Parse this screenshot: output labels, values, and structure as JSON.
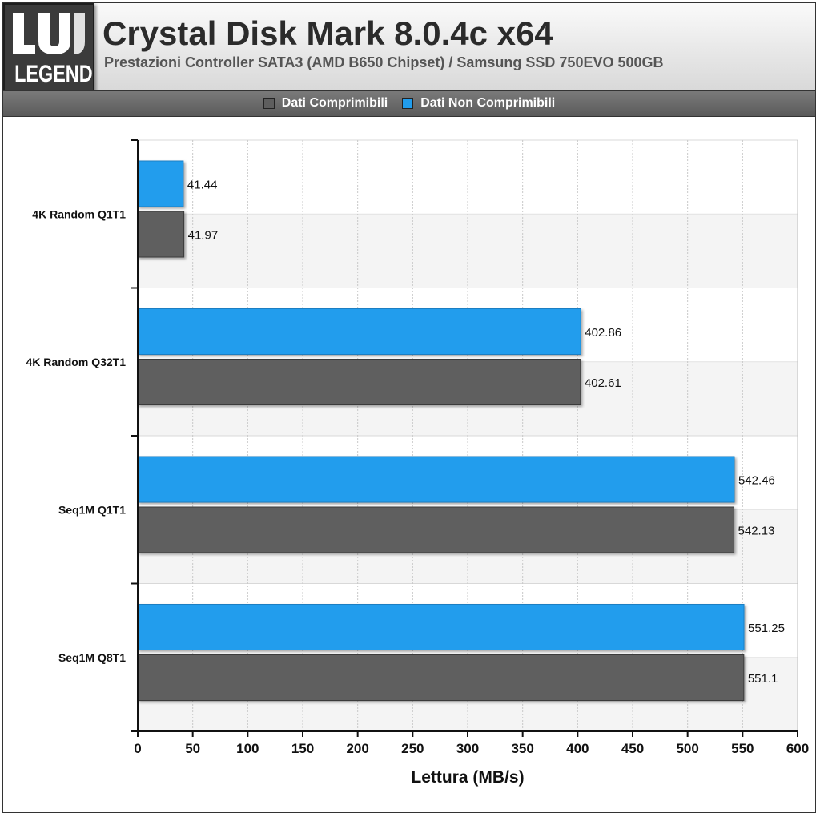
{
  "logo": {
    "text": "LEGEND"
  },
  "header": {
    "title": "Crystal Disk Mark 8.0.4c x64",
    "subtitle": "Prestazioni Controller SATA3 (AMD B650 Chipset) / Samsung SSD 750EVO 500GB"
  },
  "colors": {
    "compressible": "#5e5e5e",
    "non_compressible": "#219ded",
    "row_alt": "#f4f4f4",
    "grid": "#c8c8c8"
  },
  "chart_data": {
    "type": "bar",
    "orientation": "horizontal",
    "title": "Crystal Disk Mark 8.0.4c x64",
    "subtitle": "Prestazioni Controller SATA3 (AMD B650 Chipset) / Samsung SSD 750EVO 500GB",
    "xlabel": "Lettura (MB/s)",
    "ylabel": "",
    "xlim": [
      0,
      600
    ],
    "xticks": [
      0,
      50,
      100,
      150,
      200,
      250,
      300,
      350,
      400,
      450,
      500,
      550,
      600
    ],
    "grid": true,
    "legend_position": "top",
    "categories": [
      "4K Random Q1T1",
      "4K Random Q32T1",
      "Seq1M Q1T1",
      "Seq1M Q8T1"
    ],
    "series": [
      {
        "name": "Dati Non Comprimibili",
        "color": "#219ded",
        "values": [
          41.44,
          402.86,
          542.46,
          551.25
        ]
      },
      {
        "name": "Dati Comprimibili",
        "color": "#5e5e5e",
        "values": [
          41.97,
          402.61,
          542.13,
          551.1
        ]
      }
    ],
    "legend_order": [
      "Dati Comprimibili",
      "Dati Non Comprimibili"
    ]
  }
}
